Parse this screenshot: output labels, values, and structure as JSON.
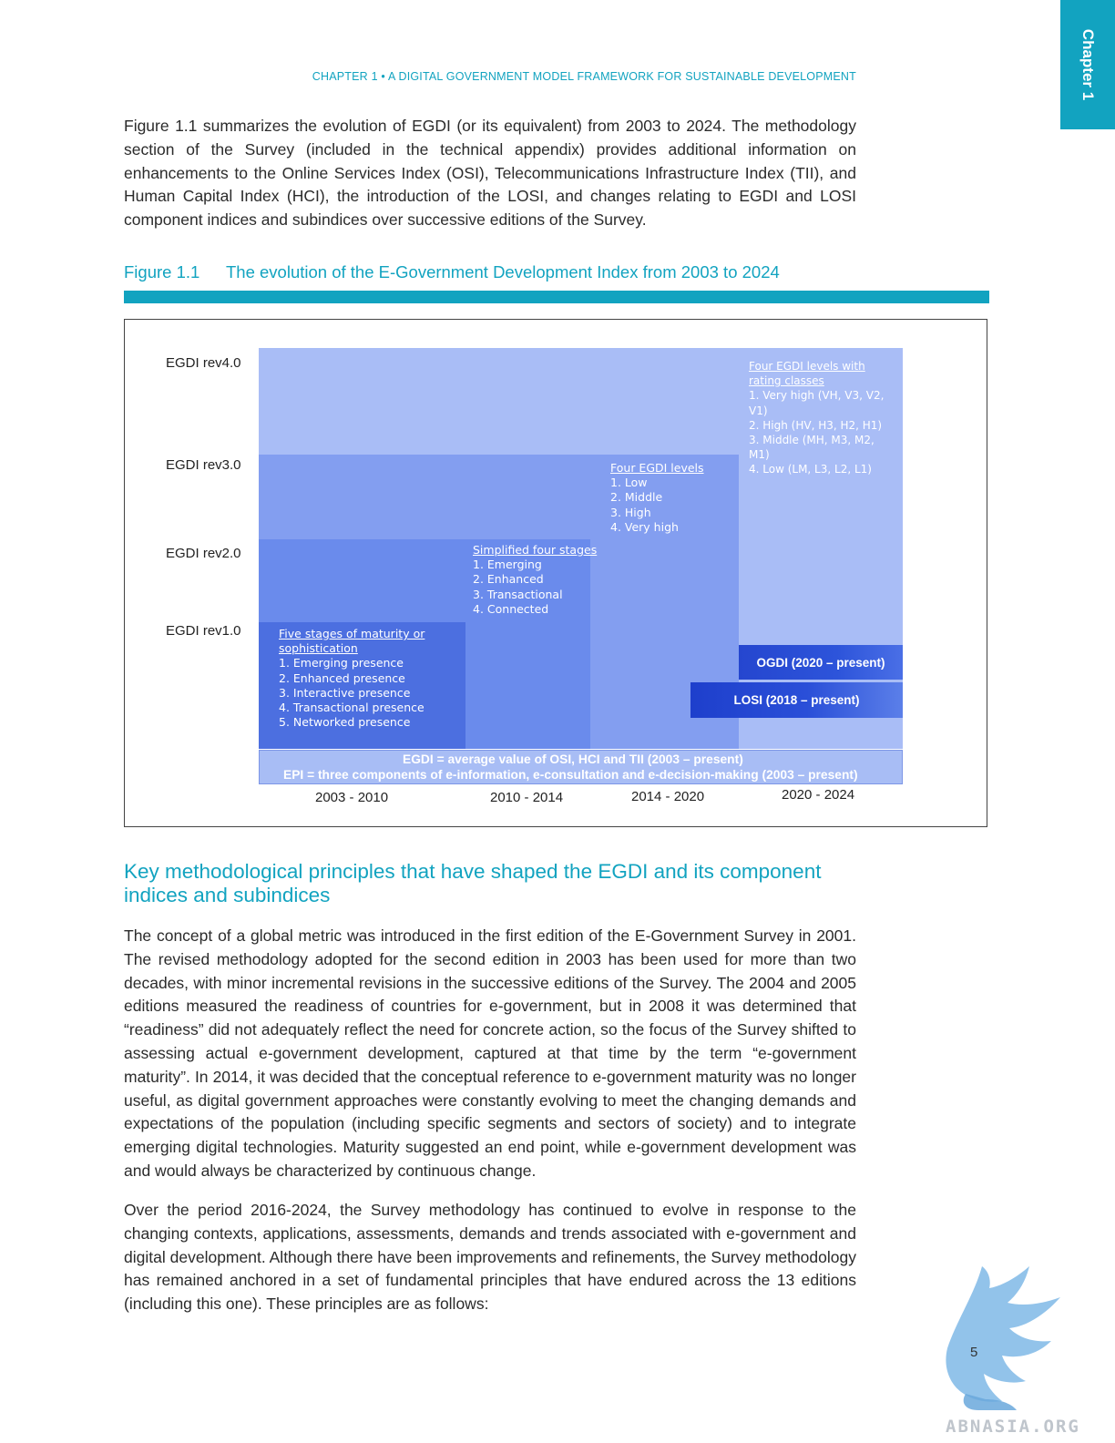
{
  "chapter_tab": "Chapter 1",
  "running_header": "CHAPTER 1 • A DIGITAL GOVERNMENT MODEL FRAMEWORK FOR SUSTAINABLE DEVELOPMENT",
  "intro_paragraph": "Figure 1.1 summarizes the evolution of EGDI (or its equivalent) from 2003 to 2024. The methodology section of the Survey (included in the technical appendix) provides additional information on enhancements to the Online Services Index (OSI), Telecommunications Infrastructure Index (TII), and Human Capital Index (HCI), the introduction of the LOSI, and changes relating to EGDI and LOSI component indices and subindices over successive editions of the Survey.",
  "figure": {
    "number": "Figure 1.1",
    "title": "The evolution of the E-Government Development Index from 2003 to 2024",
    "revisions": [
      "EGDI rev4.0",
      "EGDI rev3.0",
      "EGDI rev2.0",
      "EGDI rev1.0"
    ],
    "bands": [
      {
        "title": "Five stages of maturity or sophistication",
        "items": [
          "1. Emerging presence",
          "2. Enhanced presence",
          "3. Interactive presence",
          "4. Transactional presence",
          "5. Networked presence"
        ]
      },
      {
        "title": "Simplified four stages",
        "items": [
          "1. Emerging",
          "2. Enhanced",
          "3. Transactional",
          "4.  Connected"
        ]
      },
      {
        "title": "Four EGDI levels",
        "items": [
          "1. Low",
          "2. Middle",
          "3. High",
          "4. Very high"
        ]
      },
      {
        "title": "Four EGDI levels with rating classes",
        "items": [
          "1. Very high (VH, V3, V2, V1)",
          "2. High (HV, H3, H2, H1)",
          "3. Middle (MH, M3, M2, M1)",
          "4. Low (LM, L3, L2, L1)"
        ]
      }
    ],
    "ogdi_label": "OGDI  (2020 – present)",
    "losi_label": "LOSI (2018 – present)",
    "egdi_definition": "EGDI =  average value of OSI, HCI  and TII (2003 – present)",
    "epi_definition": "EPI  = three components of e-information, e-consultation and e-decision-making (2003 – present)",
    "periods": [
      "2003 - 2010",
      "2010 - 2014",
      "2014 - 2020",
      "2020 - 2024"
    ],
    "colors": {
      "rev1": "#4c6fe0",
      "rev2": "#6a8bec",
      "rev3": "#839ef0",
      "rev4": "#a9bdf6",
      "index_bar": "#2b4fd6"
    }
  },
  "section_heading": "Key methodological principles that have shaped the EGDI and its component indices and subindices",
  "paragraph_2": "The concept of a global metric was introduced in the first edition of the E-Government Survey in 2001. The revised methodology adopted for the second edition in 2003 has been used for more than two decades, with minor incremental revisions in the successive editions of the Survey. The 2004 and 2005 editions measured the readiness of countries for e-government, but in 2008 it was determined that “readiness” did not adequately reflect the need for concrete action, so the focus of the Survey shifted to assessing actual e-government development, captured at that time by the term “e-government maturity”. In 2014, it was decided that the conceptual reference to e-government maturity was no longer useful, as digital government approaches were constantly evolving to meet the changing demands and expectations of the population (including specific segments and sectors of society) and to integrate emerging digital technologies. Maturity suggested an end point, while e-government development was and would always be characterized by continuous change.",
  "paragraph_3": "Over the period 2016-2024, the Survey methodology has continued to evolve in response to the changing contexts, applications, assessments, demands and trends associated with e-government and digital development. Although there have been improvements and refinements, the Survey methodology has remained anchored in a set of fundamental principles that have endured across the 13 editions (including this one). These principles are as follows:",
  "page_number": "5",
  "watermark": "ABNASIA.ORG"
}
